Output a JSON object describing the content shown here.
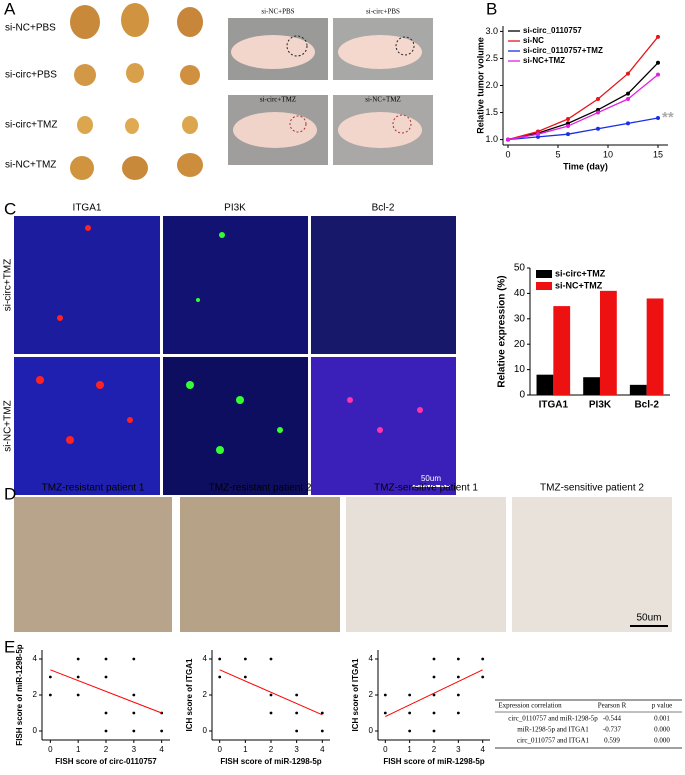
{
  "panels": {
    "A": {
      "letter": "A",
      "row_labels": [
        "si-NC+PBS",
        "si-circ+PBS",
        "si-circ+TMZ",
        "si-NC+TMZ"
      ],
      "mouse_labels": [
        "si-NC+PBS",
        "si-circ+PBS",
        "si-circ+TMZ",
        "si-NC+TMZ"
      ]
    },
    "B": {
      "letter": "B"
    },
    "C": {
      "letter": "C",
      "columns": [
        "ITGA1",
        "PI3K",
        "Bcl-2"
      ],
      "rows": [
        "si-circ+TMZ",
        "si-NC+TMZ"
      ],
      "scale_bar": "50um"
    },
    "D": {
      "letter": "D",
      "titles": [
        "TMZ-resistant patient 1",
        "TMZ-resistant patient 2",
        "TMZ-sensitive patient 1",
        "TMZ-sensitive patient 2"
      ],
      "scale_bar": "50um"
    },
    "E": {
      "letter": "E"
    }
  },
  "chart_data": [
    {
      "type": "line",
      "x": [
        0,
        3,
        6,
        9,
        12,
        15
      ],
      "xlabel": "Time (day)",
      "ylabel": "Relative tumor volume",
      "xlim": [
        -0.5,
        16
      ],
      "xticks": [
        0,
        5,
        10,
        15
      ],
      "ylim": [
        0.9,
        3.1
      ],
      "yticks": [
        {
          "value": 1,
          "label": "1.0"
        },
        {
          "value": 1.5,
          "label": "1.5"
        },
        {
          "value": 2,
          "label": "2.0"
        },
        {
          "value": 2.5,
          "label": "2.5"
        },
        {
          "value": 3,
          "label": "3.0"
        }
      ],
      "legend": "upper left",
      "annotation": "**",
      "series": [
        {
          "name": "si-circ_0110757",
          "color": "#000000",
          "values": [
            1.0,
            1.12,
            1.3,
            1.55,
            1.85,
            2.42
          ]
        },
        {
          "name": "si-NC",
          "color": "#e8141a",
          "values": [
            1.0,
            1.15,
            1.38,
            1.75,
            2.22,
            2.9
          ]
        },
        {
          "name": "si-circ_0110757+TMZ",
          "color": "#1a2ee8",
          "values": [
            1.0,
            1.05,
            1.1,
            1.2,
            1.3,
            1.4
          ]
        },
        {
          "name": "si-NC+TMZ",
          "color": "#e020e0",
          "values": [
            1.0,
            1.1,
            1.25,
            1.5,
            1.75,
            2.2
          ]
        }
      ]
    },
    {
      "type": "bar",
      "categories": [
        "ITGA1",
        "PI3K",
        "Bcl-2"
      ],
      "ylabel": "Relative expression (%)",
      "ylim": [
        0,
        50
      ],
      "yticks": [
        0,
        10,
        20,
        30,
        40,
        50
      ],
      "legend": "upper left",
      "series": [
        {
          "name": "si-circ+TMZ",
          "color": "#000000",
          "values": [
            8,
            7,
            4
          ]
        },
        {
          "name": "si-NC+TMZ",
          "color": "#ee1111",
          "values": [
            35,
            41,
            38
          ]
        }
      ]
    },
    {
      "type": "scatter",
      "xlabel": "FISH score of circ-0110757",
      "ylabel": "FISH score of miR-1298-5p",
      "xlim": [
        -0.3,
        4.3
      ],
      "xticks": [
        0,
        1,
        2,
        3,
        4
      ],
      "ylim": [
        -0.5,
        4.5
      ],
      "yticks": [
        0,
        2,
        4
      ],
      "color": "#000000",
      "x": [
        0,
        0,
        1,
        1,
        1,
        2,
        2,
        2,
        2,
        3,
        3,
        3,
        3,
        4,
        4
      ],
      "y": [
        3,
        2,
        4,
        3,
        2,
        4,
        3,
        1,
        0,
        4,
        2,
        1,
        0,
        1,
        0
      ],
      "fit": {
        "color": "#ff0000",
        "x": [
          0,
          4
        ],
        "y": [
          3.4,
          1.0
        ]
      }
    },
    {
      "type": "scatter",
      "xlabel": "FISH score of miR-1298-5p",
      "ylabel": "ICH score of ITGA1",
      "xlim": [
        -0.3,
        4.3
      ],
      "xticks": [
        0,
        1,
        2,
        3,
        4
      ],
      "ylim": [
        -0.5,
        4.5
      ],
      "yticks": [
        0,
        2,
        4
      ],
      "color": "#000000",
      "x": [
        0,
        0,
        1,
        1,
        2,
        2,
        2,
        3,
        3,
        3,
        4,
        4
      ],
      "y": [
        4,
        3,
        4,
        3,
        4,
        2,
        1,
        2,
        1,
        0,
        1,
        0
      ],
      "fit": {
        "color": "#ff0000",
        "x": [
          0,
          4
        ],
        "y": [
          3.4,
          0.9
        ]
      }
    },
    {
      "type": "scatter",
      "xlabel": "FISH score of miR-1298-5p",
      "ylabel": "ICH score of ITGA1",
      "xlim": [
        -0.3,
        4.3
      ],
      "xticks": [
        0,
        1,
        2,
        3,
        4
      ],
      "ylim": [
        -0.5,
        4.5
      ],
      "yticks": [
        0,
        2,
        4
      ],
      "color": "#000000",
      "x": [
        0,
        0,
        1,
        1,
        1,
        2,
        2,
        2,
        2,
        2,
        3,
        3,
        3,
        3,
        4,
        4
      ],
      "y": [
        1,
        2,
        1,
        0,
        2,
        0,
        1,
        2,
        3,
        4,
        1,
        2,
        3,
        4,
        3,
        4
      ],
      "fit": {
        "color": "#ff0000",
        "x": [
          0,
          4
        ],
        "y": [
          0.8,
          3.4
        ]
      }
    }
  ],
  "table": {
    "header": [
      "Expression correlation",
      "Pearson R",
      "p value"
    ],
    "rows": [
      [
        "circ_0110757 and miR-1298-5p",
        "-0.544",
        "0.001"
      ],
      [
        "miR-1298-5p and ITGA1",
        "-0.737",
        "0.000"
      ],
      [
        "circ_0110757 and ITGA1",
        "0.599",
        "0.000"
      ]
    ]
  }
}
